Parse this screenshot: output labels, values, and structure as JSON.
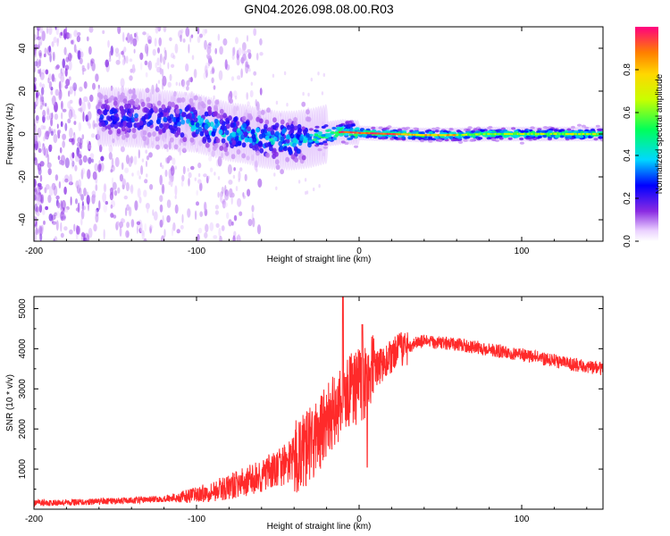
{
  "title": "GN04.2026.098.08.00.R03",
  "chart_data": [
    {
      "type": "heatmap",
      "xlabel": "Height of straight line (km)",
      "ylabel": "Frequency (Hz)",
      "xlim": [
        -200,
        150
      ],
      "ylim": [
        -50,
        50
      ],
      "xticks": [
        -200,
        -100,
        0,
        100
      ],
      "yticks": [
        -40,
        -20,
        0,
        20,
        40
      ],
      "colorbar": {
        "label": "Normalized spectral amplitude",
        "range": [
          0,
          1
        ],
        "ticks": [
          0.0,
          0.2,
          0.4,
          0.6,
          0.8
        ]
      },
      "ridge": [
        {
          "x": -150,
          "y": 8
        },
        {
          "x": -125,
          "y": 7
        },
        {
          "x": -110,
          "y": 6
        },
        {
          "x": -100,
          "y": 5
        },
        {
          "x": -90,
          "y": 3
        },
        {
          "x": -80,
          "y": 1
        },
        {
          "x": -70,
          "y": 0
        },
        {
          "x": -60,
          "y": -2
        },
        {
          "x": -50,
          "y": -3
        },
        {
          "x": -40,
          "y": -3
        },
        {
          "x": -30,
          "y": -2
        },
        {
          "x": -20,
          "y": 0
        },
        {
          "x": -10,
          "y": 1
        },
        {
          "x": 0,
          "y": 0.5
        },
        {
          "x": 20,
          "y": 0
        },
        {
          "x": 40,
          "y": -0.5
        },
        {
          "x": 60,
          "y": -0.5
        },
        {
          "x": 80,
          "y": 0
        },
        {
          "x": 100,
          "y": 0
        },
        {
          "x": 150,
          "y": 0
        }
      ]
    },
    {
      "type": "line",
      "xlabel": "Height of straight line (km)",
      "ylabel": "SNR (10 * v/v)",
      "xlim": [
        -200,
        150
      ],
      "ylim": [
        0,
        5300
      ],
      "xticks": [
        -200,
        -100,
        0,
        100
      ],
      "yticks": [
        1000,
        2000,
        3000,
        4000,
        5000
      ],
      "color": "#ff2a2a",
      "series": [
        {
          "name": "SNR",
          "x": [
            -200,
            -180,
            -160,
            -140,
            -120,
            -110,
            -100,
            -90,
            -80,
            -70,
            -60,
            -50,
            -40,
            -30,
            -25,
            -20,
            -15,
            -10,
            -5,
            0,
            5,
            10,
            15,
            20,
            25,
            30,
            35,
            40,
            50,
            60,
            70,
            80,
            90,
            100,
            110,
            120,
            130,
            140,
            150
          ],
          "y": [
            150,
            170,
            190,
            220,
            260,
            300,
            360,
            450,
            550,
            680,
            820,
            1000,
            1250,
            1600,
            1850,
            2150,
            2450,
            2750,
            2950,
            3100,
            3250,
            3450,
            3650,
            3800,
            3950,
            4050,
            4150,
            4180,
            4150,
            4100,
            4050,
            3980,
            3920,
            3850,
            3780,
            3700,
            3620,
            3560,
            3500
          ]
        }
      ]
    }
  ]
}
